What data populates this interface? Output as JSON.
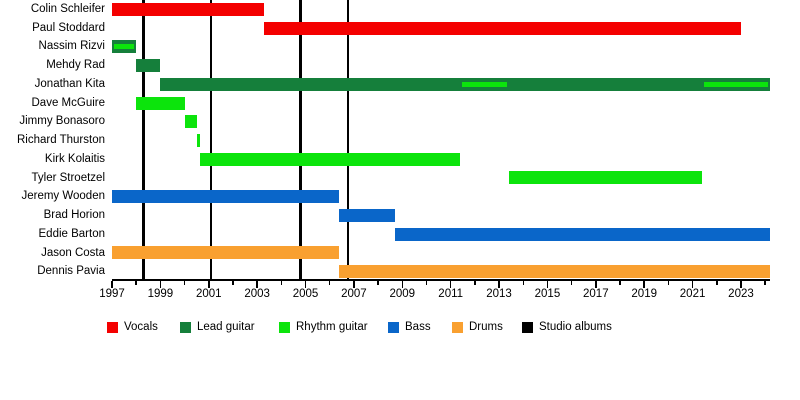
{
  "chart_data": {
    "type": "timeline",
    "description": "Band members timeline (Gantt-style) with roles by color and studio album release markers",
    "x_axis": {
      "start": 1997,
      "end": 2024.2,
      "major_tick_years": [
        1997,
        1999,
        2001,
        2003,
        2005,
        2007,
        2009,
        2011,
        2013,
        2015,
        2017,
        2019,
        2021,
        2023
      ],
      "minor_tick_every": 1,
      "grid": false
    },
    "role_colors": {
      "Vocals": "#F40000",
      "Lead guitar": "#157F3B",
      "Rhythm guitar": "#0CE40C",
      "Bass": "#0A66C9",
      "Drums": "#F9A030",
      "Studio albums": "#000000"
    },
    "legend": [
      {
        "label": "Vocals",
        "color": "#F40000"
      },
      {
        "label": "Lead guitar",
        "color": "#157F3B"
      },
      {
        "label": "Rhythm guitar",
        "color": "#0CE40C"
      },
      {
        "label": "Bass",
        "color": "#0A66C9"
      },
      {
        "label": "Drums",
        "color": "#F9A030"
      },
      {
        "label": "Studio albums",
        "color": "#000000"
      }
    ],
    "members": [
      {
        "name": "Colin Schleifer",
        "bars": [
          {
            "role": "Vocals",
            "start": 1997,
            "end": 2003.3
          }
        ]
      },
      {
        "name": "Paul Stoddard",
        "bars": [
          {
            "role": "Vocals",
            "start": 2003.3,
            "end": 2023.0
          }
        ]
      },
      {
        "name": "Nassim Rizvi",
        "bars": [
          {
            "role": "Lead guitar",
            "start": 1997,
            "end": 1998
          }
        ],
        "overlays": [
          {
            "role": "Rhythm guitar",
            "start": 1997,
            "end": 1998
          }
        ]
      },
      {
        "name": "Mehdy Rad",
        "bars": [
          {
            "role": "Lead guitar",
            "start": 1998,
            "end": 1999
          }
        ]
      },
      {
        "name": "Jonathan Kita",
        "bars": [
          {
            "role": "Lead guitar",
            "start": 1999,
            "end": 2024.2
          }
        ],
        "overlays": [
          {
            "role": "Rhythm guitar",
            "start": 2011.4,
            "end": 2013.4
          },
          {
            "role": "Rhythm guitar",
            "start": 2021.4,
            "end": 2024.2
          }
        ]
      },
      {
        "name": "Dave McGuire",
        "bars": [
          {
            "role": "Rhythm guitar",
            "start": 1998,
            "end": 2000
          }
        ]
      },
      {
        "name": "Jimmy Bonasoro",
        "bars": [
          {
            "role": "Rhythm guitar",
            "start": 2000,
            "end": 2000.5
          }
        ]
      },
      {
        "name": "Richard Thurston",
        "bars": [
          {
            "role": "Rhythm guitar",
            "start": 2000.5,
            "end": 2000.65
          }
        ]
      },
      {
        "name": "Kirk Kolaitis",
        "bars": [
          {
            "role": "Rhythm guitar",
            "start": 2000.65,
            "end": 2011.4
          }
        ]
      },
      {
        "name": "Tyler Stroetzel",
        "bars": [
          {
            "role": "Rhythm guitar",
            "start": 2013.4,
            "end": 2021.4
          }
        ]
      },
      {
        "name": "Jeremy Wooden",
        "bars": [
          {
            "role": "Bass",
            "start": 1997,
            "end": 2006.4
          }
        ]
      },
      {
        "name": "Brad Horion",
        "bars": [
          {
            "role": "Bass",
            "start": 2006.4,
            "end": 2008.7
          }
        ]
      },
      {
        "name": "Eddie Barton",
        "bars": [
          {
            "role": "Bass",
            "start": 2008.7,
            "end": 2024.2
          }
        ]
      },
      {
        "name": "Jason Costa",
        "bars": [
          {
            "role": "Drums",
            "start": 1997,
            "end": 2006.4
          }
        ]
      },
      {
        "name": "Dennis Pavia",
        "bars": [
          {
            "role": "Drums",
            "start": 2006.4,
            "end": 2024.2
          }
        ]
      }
    ],
    "album_marker_years": [
      1998.3,
      2001.1,
      2004.8,
      2006.75
    ]
  }
}
